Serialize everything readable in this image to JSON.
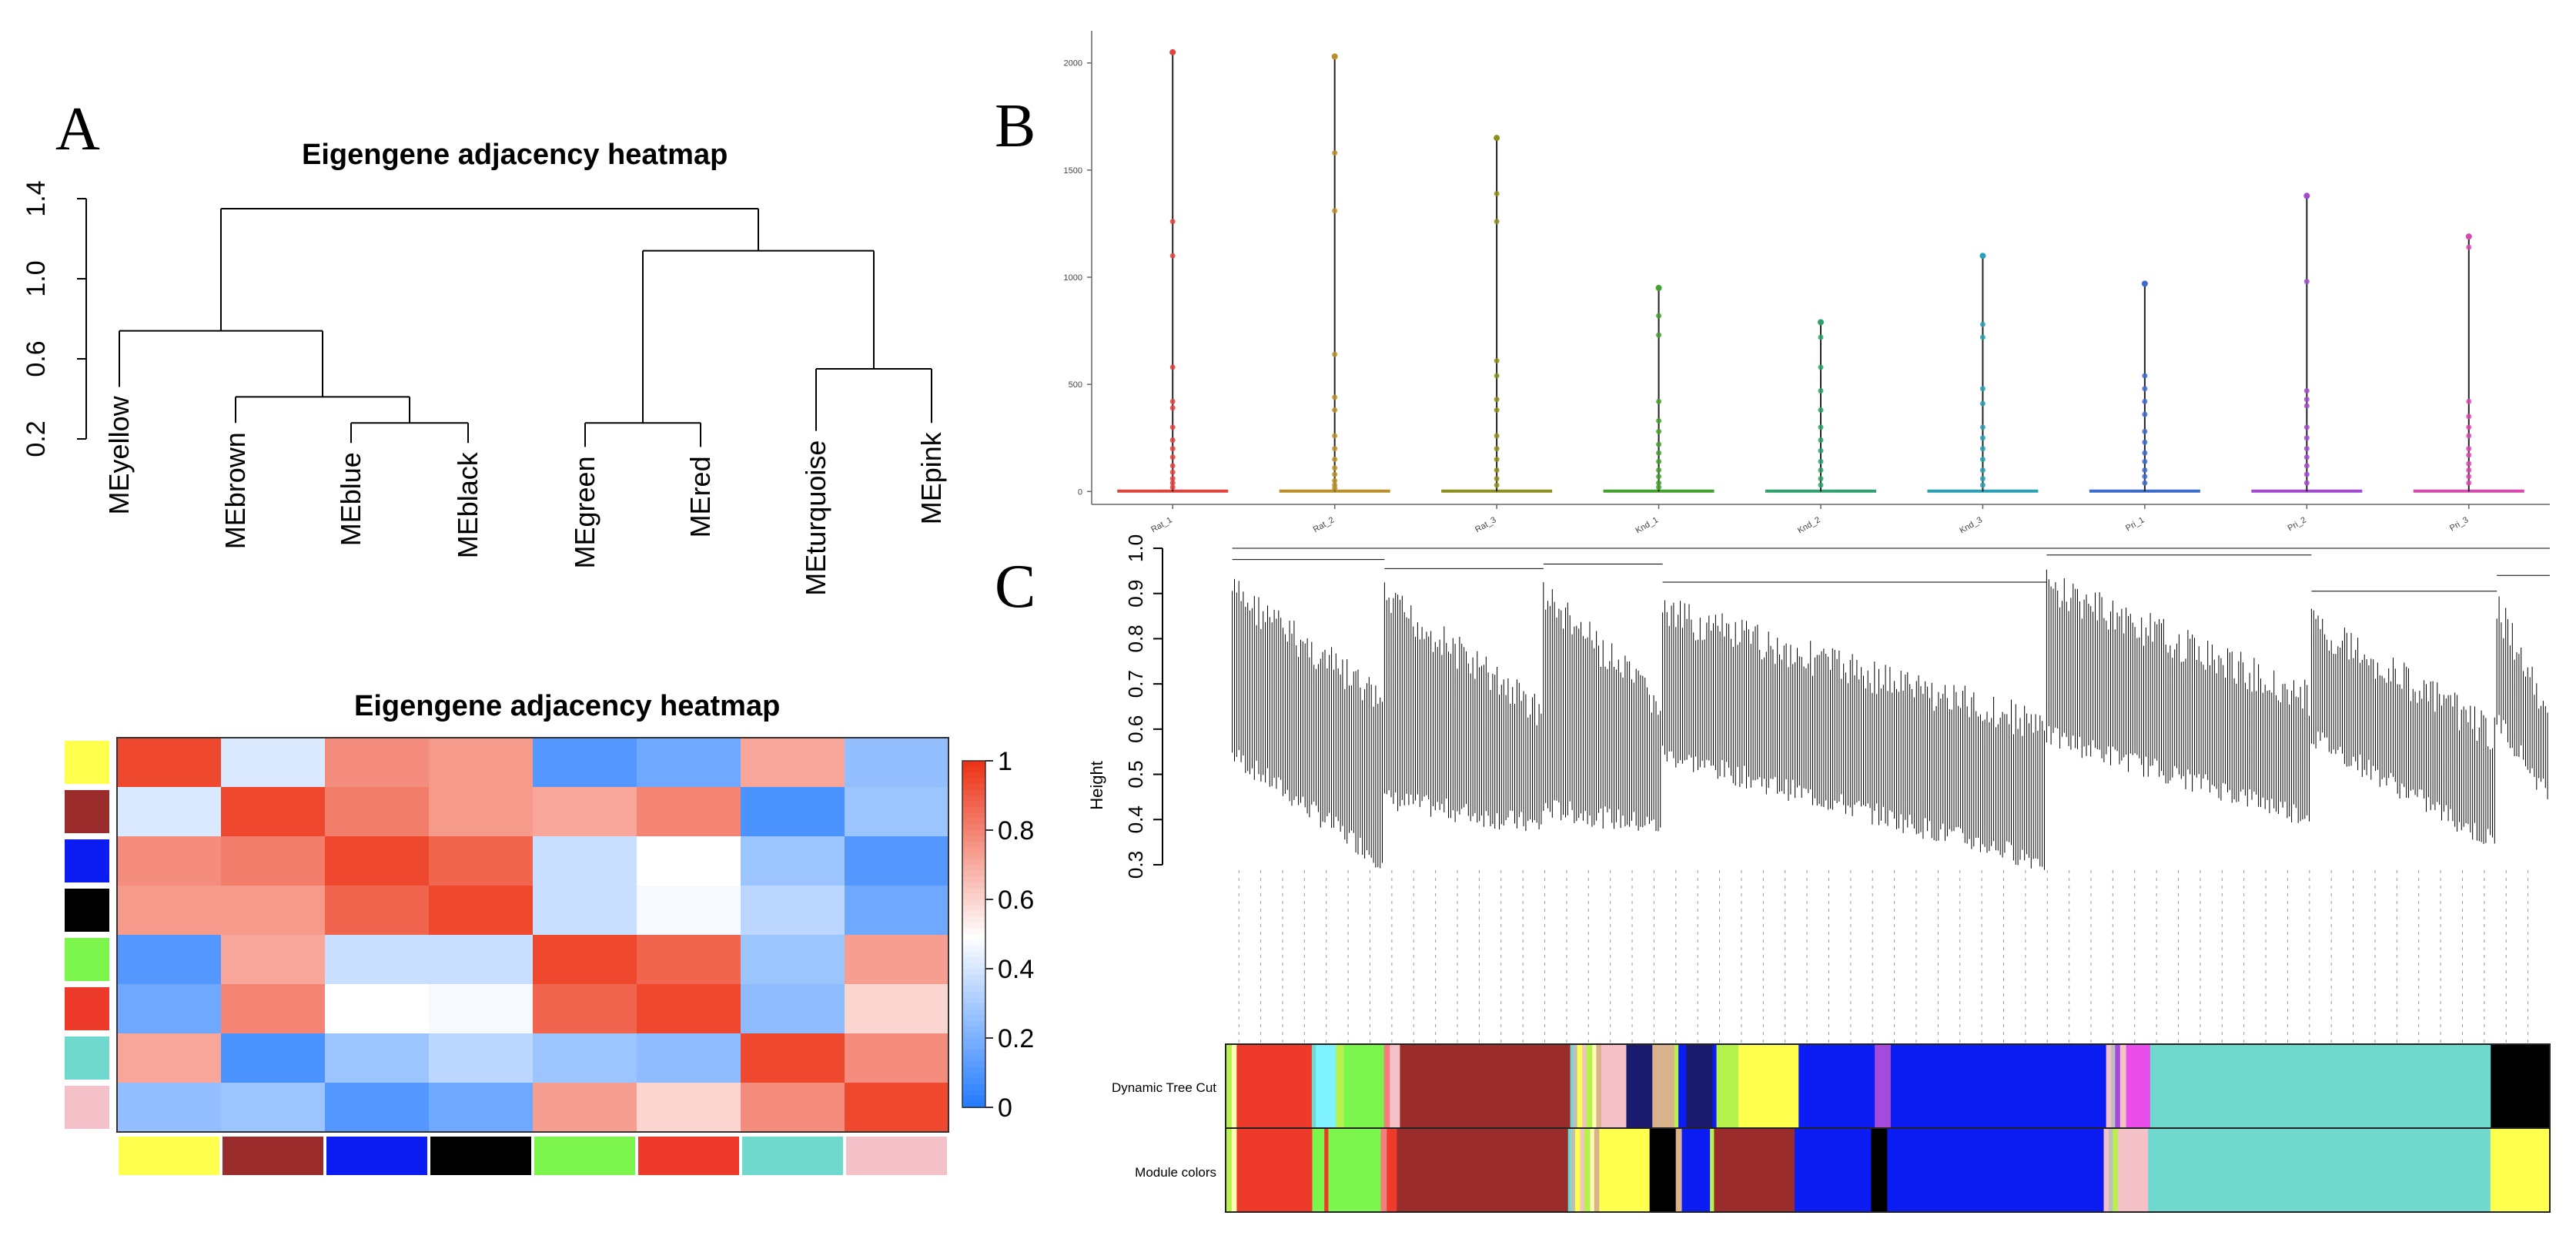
{
  "figure": {
    "panel_letters": {
      "a": "A",
      "b": "B",
      "c": "C"
    },
    "colors": {
      "yellow": "#ffff4d",
      "brown": "#9b2c2c",
      "blue": "#0b1df2",
      "black": "#000000",
      "green": "#7cf54d",
      "red": "#ee3a2b",
      "turquoise": "#70d9ce",
      "pink": "#f5c1c9",
      "grey": "#bebebe",
      "lightyellow": "#ffffb3",
      "cyan": "#7ef2ff",
      "darkblue": "#1a1a6e",
      "greenyellow": "#b5f24d",
      "purple": "#a44bdc",
      "magenta": "#e94dea",
      "tan": "#d9b38c",
      "salmon": "#f08080"
    }
  },
  "chart_data": [
    {
      "id": "A-dendrogram",
      "type": "dendrogram",
      "title": "Eigengene adjacency heatmap",
      "ylabel": "",
      "ylim": [
        0.2,
        1.4
      ],
      "yticks": [
        "0.2",
        "0.6",
        "1.0",
        "1.4"
      ],
      "leaves": [
        "MEyellow",
        "MEbrown",
        "MEblue",
        "MEblack",
        "MEgreen",
        "MEred",
        "MEturquoise",
        "MEpink"
      ],
      "merges": [
        {
          "left": "MEblue",
          "right": "MEblack",
          "height": 0.28
        },
        {
          "left": "MEgreen",
          "right": "MEred",
          "height": 0.28
        },
        {
          "left": "MEbrown",
          "right": "MEblue+MEblack",
          "height": 0.41
        },
        {
          "left": "MEturquoise",
          "right": "MEpink",
          "height": 0.55
        },
        {
          "left": "MEyellow",
          "right": "MEbrown+MEblue+MEblack",
          "height": 0.74
        },
        {
          "left": "MEgreen+MEred",
          "right": "MEturquoise+MEpink",
          "height": 1.14
        },
        {
          "left": "group1",
          "right": "group2",
          "height": 1.35
        }
      ]
    },
    {
      "id": "A-heatmap",
      "type": "heatmap",
      "title": "Eigengene adjacency heatmap",
      "modules": [
        "yellow",
        "brown",
        "blue",
        "black",
        "green",
        "red",
        "turquoise",
        "pink"
      ],
      "values": [
        [
          0.95,
          0.42,
          0.78,
          0.75,
          0.12,
          0.18,
          0.72,
          0.26
        ],
        [
          0.42,
          0.95,
          0.82,
          0.75,
          0.72,
          0.8,
          0.1,
          0.28
        ],
        [
          0.78,
          0.82,
          0.95,
          0.88,
          0.38,
          0.5,
          0.28,
          0.12
        ],
        [
          0.75,
          0.75,
          0.88,
          0.95,
          0.38,
          0.48,
          0.35,
          0.18
        ],
        [
          0.12,
          0.72,
          0.38,
          0.38,
          0.95,
          0.88,
          0.28,
          0.74
        ],
        [
          0.18,
          0.8,
          0.5,
          0.48,
          0.88,
          0.95,
          0.25,
          0.6
        ],
        [
          0.72,
          0.1,
          0.28,
          0.35,
          0.28,
          0.25,
          0.95,
          0.78
        ],
        [
          0.26,
          0.28,
          0.12,
          0.18,
          0.74,
          0.6,
          0.78,
          0.95
        ]
      ],
      "colorbar": {
        "min": 0,
        "max": 1,
        "ticks": [
          "0",
          "0.2",
          "0.4",
          "0.6",
          "0.8",
          "1"
        ]
      }
    },
    {
      "id": "B",
      "type": "scatter",
      "title": "",
      "ylim": [
        -60,
        2150
      ],
      "yticks": [
        "0",
        "500",
        "1000",
        "1500",
        "2000"
      ],
      "categories": [
        "Rat_1",
        "Rat_2",
        "Rat_3",
        "Knd_1",
        "Knd_2",
        "Knd_3",
        "Pri_1",
        "Pri_2",
        "Pri_3"
      ],
      "series_colors": [
        "#e0433e",
        "#b8902a",
        "#8c8f1e",
        "#43a02c",
        "#2ea06e",
        "#2aa0b5",
        "#3e6ccc",
        "#a34bd0",
        "#d64ab0"
      ],
      "max_values": [
        2050,
        2030,
        1650,
        950,
        790,
        1100,
        970,
        1380,
        1190
      ],
      "points": [
        [
          1260,
          1100,
          580,
          420,
          390,
          300,
          240,
          200,
          160,
          120,
          90,
          60,
          40,
          20
        ],
        [
          1580,
          1310,
          640,
          440,
          380,
          260,
          200,
          150,
          110,
          80,
          50,
          30,
          15
        ],
        [
          1390,
          1260,
          610,
          540,
          430,
          380,
          260,
          200,
          150,
          100,
          60,
          30
        ],
        [
          820,
          730,
          420,
          330,
          280,
          220,
          180,
          140,
          100,
          70,
          40,
          20
        ],
        [
          720,
          580,
          470,
          380,
          300,
          240,
          190,
          140,
          100,
          60,
          30
        ],
        [
          780,
          720,
          480,
          410,
          300,
          250,
          200,
          150,
          100,
          60,
          30
        ],
        [
          540,
          480,
          420,
          360,
          280,
          230,
          180,
          140,
          100,
          70,
          40
        ],
        [
          980,
          470,
          430,
          400,
          300,
          250,
          200,
          160,
          120,
          80,
          40
        ],
        [
          1140,
          420,
          350,
          300,
          260,
          200,
          170,
          130,
          100,
          70,
          40
        ]
      ]
    },
    {
      "id": "C",
      "type": "dendrogram",
      "title": "",
      "ylabel": "Height",
      "ylim": [
        0.3,
        1.0
      ],
      "yticks": [
        "0.3",
        "0.4",
        "0.5",
        "0.6",
        "0.7",
        "0.8",
        "0.9",
        "1.0"
      ],
      "color_rows": [
        "Dynamic Tree Cut",
        "Module colors"
      ],
      "segments_dynamic": [
        [
          "greenyellow",
          0.6
        ],
        [
          "lightyellow",
          0.5
        ],
        [
          "red",
          7.5
        ],
        [
          "turquoise",
          0.4
        ],
        [
          "cyan",
          2.0
        ],
        [
          "greenyellow",
          0.8
        ],
        [
          "green",
          4.0
        ],
        [
          "salmon",
          0.6
        ],
        [
          "pink",
          1.0
        ],
        [
          "brown",
          17.0
        ],
        [
          "turquoise",
          0.3
        ],
        [
          "grey",
          0.4
        ],
        [
          "yellow",
          0.5
        ],
        [
          "pink",
          0.4
        ],
        [
          "greenyellow",
          0.6
        ],
        [
          "lightyellow",
          0.4
        ],
        [
          "tan",
          0.5
        ],
        [
          "pink",
          2.5
        ],
        [
          "darkblue",
          2.6
        ],
        [
          "tan",
          2.2
        ],
        [
          "greenyellow",
          0.4
        ],
        [
          "blue",
          0.8
        ],
        [
          "darkblue",
          2.6
        ],
        [
          "blue",
          0.4
        ],
        [
          "greenyellow",
          2.2
        ],
        [
          "yellow",
          6.0
        ],
        [
          "blue",
          7.6
        ],
        [
          "purple",
          1.6
        ],
        [
          "blue",
          21.5
        ],
        [
          "pink",
          0.5
        ],
        [
          "grey",
          0.4
        ],
        [
          "purple",
          0.5
        ],
        [
          "pink",
          0.6
        ],
        [
          "magenta",
          2.4
        ],
        [
          "turquoise",
          34.0
        ],
        [
          "black",
          5.9
        ]
      ],
      "segments_module": [
        [
          "greenyellow",
          0.6
        ],
        [
          "lightyellow",
          0.5
        ],
        [
          "red",
          7.5
        ],
        [
          "green",
          1.2
        ],
        [
          "red",
          0.4
        ],
        [
          "green",
          5.2
        ],
        [
          "salmon",
          0.6
        ],
        [
          "red",
          1.0
        ],
        [
          "brown",
          17.0
        ],
        [
          "turquoise",
          0.3
        ],
        [
          "grey",
          0.4
        ],
        [
          "yellow",
          0.5
        ],
        [
          "pink",
          0.4
        ],
        [
          "greenyellow",
          0.6
        ],
        [
          "lightyellow",
          0.4
        ],
        [
          "tan",
          0.5
        ],
        [
          "yellow",
          5.0
        ],
        [
          "black",
          2.6
        ],
        [
          "tan",
          0.6
        ],
        [
          "blue",
          2.8
        ],
        [
          "greenyellow",
          0.4
        ],
        [
          "brown",
          8.0
        ],
        [
          "blue",
          7.6
        ],
        [
          "black",
          1.6
        ],
        [
          "blue",
          21.5
        ],
        [
          "pink",
          0.5
        ],
        [
          "grey",
          0.4
        ],
        [
          "greenyellow",
          0.5
        ],
        [
          "pink",
          0.6
        ],
        [
          "pink",
          2.4
        ],
        [
          "turquoise",
          34.0
        ],
        [
          "yellow",
          5.9
        ]
      ]
    }
  ]
}
